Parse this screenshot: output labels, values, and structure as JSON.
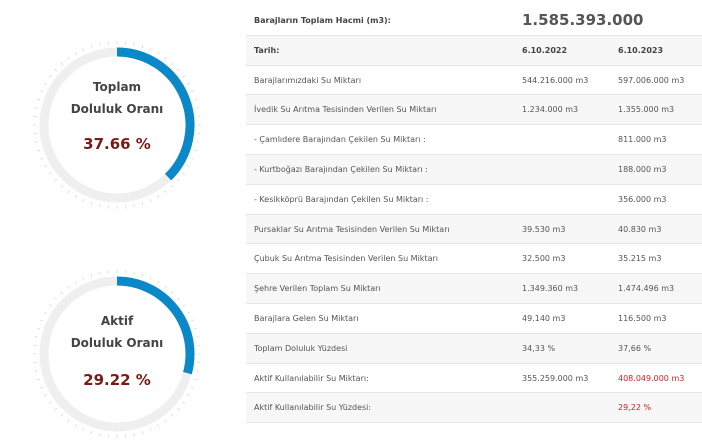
{
  "gauges": [
    {
      "title_line1": "Toplam",
      "title_line2": "Doluluk Oranı",
      "value_text": "37.66 %",
      "percent": 37.66,
      "arc_color": "#0a88c8",
      "track_color": "#efefef"
    },
    {
      "title_line1": "Aktif",
      "title_line2": "Doluluk Oranı",
      "value_text": "29.22 %",
      "percent": 29.22,
      "arc_color": "#0a88c8",
      "track_color": "#efefef"
    }
  ],
  "table": {
    "header": {
      "label": "Barajların Toplam Hacmi (m3):",
      "value": "1.585.393.000"
    },
    "date_row": {
      "label": "Tarih:",
      "date1": "6.10.2022",
      "date2": "6.10.2023"
    },
    "rows": [
      {
        "label": "Barajlarımızdaki Su Miktarı",
        "v1": "544.216.000 m3",
        "v2": "597.006.000 m3"
      },
      {
        "label": "İvedik Su Arıtma Tesisinden Verilen Su Miktarı",
        "v1": "1.234.000 m3",
        "v2": "1.355.000 m3"
      },
      {
        "label": "- Çamlıdere Barajından Çekilen Su Miktarı :",
        "v1": "",
        "v2": "811.000 m3"
      },
      {
        "label": "- Kurtboğazı Barajından Çekilen Su Miktarı :",
        "v1": "",
        "v2": "188.000 m3"
      },
      {
        "label": "- Kesikköprü Barajından Çekilen Su Miktarı :",
        "v1": "",
        "v2": "356.000 m3"
      },
      {
        "label": "Pursaklar Su Arıtma Tesisinden Verilen Su Miktarı",
        "v1": "39.530 m3",
        "v2": "40.830 m3"
      },
      {
        "label": "Çubuk Su Arıtma Tesisinden Verilen Su Miktarı",
        "v1": "32.500 m3",
        "v2": "35.215 m3"
      },
      {
        "label": "Şehre Verilen Toplam Su Miktarı",
        "v1": "1.349.360 m3",
        "v2": "1.474.496 m3"
      },
      {
        "label": "Barajlara Gelen Su Miktarı",
        "v1": "49.140 m3",
        "v2": "116.500 m3"
      },
      {
        "label": "Toplam Doluluk Yüzdesi",
        "v1": "34,33 %",
        "v2": "37,66 %"
      },
      {
        "label": "Aktif Kullanılabilir Su Miktarı:",
        "v1": "355.259.000 m3",
        "v2": "408.049.000 m3"
      },
      {
        "label": "Aktif Kullanılabilir Su Yüzdesi:",
        "v1": "",
        "v2": "29,22 %"
      }
    ],
    "highlight_color": "#d21f1f"
  }
}
